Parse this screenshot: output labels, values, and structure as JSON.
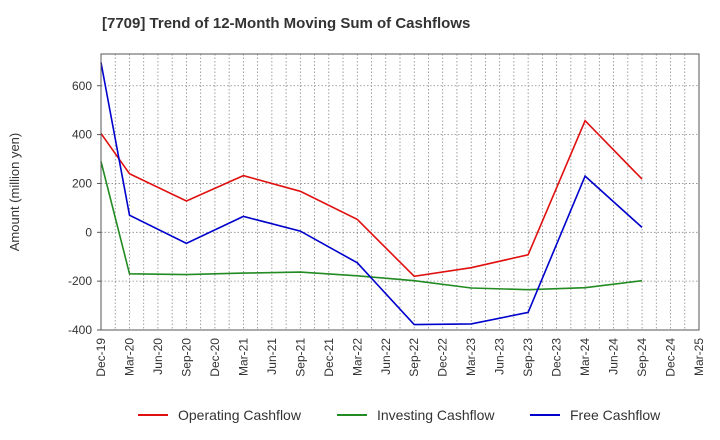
{
  "chart_data": {
    "type": "line",
    "title": "[7709]  Trend of 12-Month Moving Sum of Cashflows",
    "xlabel": "",
    "ylabel": "Amount (million yen)",
    "categories": [
      "Dec-19",
      "Mar-20",
      "Jun-20",
      "Sep-20",
      "Dec-20",
      "Mar-21",
      "Jun-21",
      "Sep-21",
      "Dec-21",
      "Mar-22",
      "Jun-22",
      "Sep-22",
      "Dec-22",
      "Mar-23",
      "Jun-23",
      "Sep-23",
      "Dec-23",
      "Mar-24",
      "Jun-24",
      "Sep-24",
      "Dec-24",
      "Mar-25"
    ],
    "ylim": [
      -400,
      730
    ],
    "yticks": [
      -400,
      -200,
      0,
      200,
      400,
      600
    ],
    "grid": true,
    "legend_position": "bottom",
    "series": [
      {
        "name": "Operating Cashflow",
        "color": "#e01010",
        "values": [
          405,
          240,
          null,
          128,
          null,
          232,
          null,
          168,
          null,
          53,
          null,
          -180,
          null,
          -145,
          null,
          -92,
          null,
          457,
          null,
          218,
          null,
          null
        ]
      },
      {
        "name": "Investing Cashflow",
        "color": "#228b22",
        "values": [
          290,
          -170,
          null,
          -173,
          null,
          -167,
          null,
          -163,
          null,
          -178,
          null,
          -198,
          null,
          -228,
          null,
          -235,
          null,
          -227,
          null,
          -198,
          null,
          null
        ]
      },
      {
        "name": "Free Cashflow",
        "color": "#0000cc",
        "values": [
          695,
          70,
          null,
          -45,
          null,
          65,
          null,
          5,
          null,
          -125,
          null,
          -378,
          null,
          -375,
          null,
          -328,
          null,
          230,
          null,
          20,
          null,
          null
        ]
      }
    ]
  }
}
